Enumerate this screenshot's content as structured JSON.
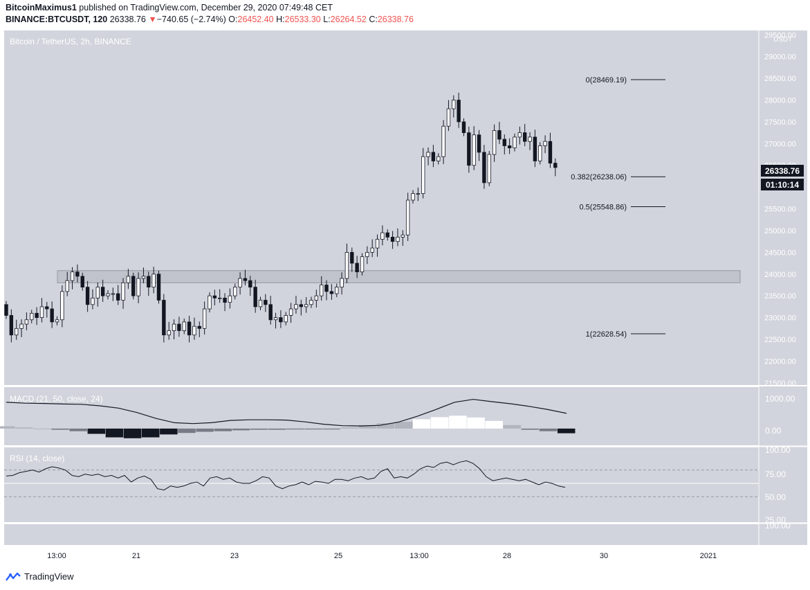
{
  "header": {
    "author": "BitcoinMaximus1",
    "published_text": "published on TradingView.com, December 29, 2020 07:49:48 CET",
    "symbol": "BINANCE:BTCUSDT, 120",
    "last": "26338.76",
    "change_arrow": "▼",
    "change": "−740.65 (−2.74%)",
    "o_label": "O:",
    "o": "26452.40",
    "h_label": "H:",
    "h": "26533.30",
    "l_label": "L:",
    "l": "26264.52",
    "c_label": "C:",
    "c": "26338.76"
  },
  "chart_data": [
    {
      "type": "candlestick",
      "title": "Bitcoin / TetherUS, 2h, BINANCE",
      "y_unit": "USDT",
      "ylim": [
        21500,
        29500
      ],
      "y_ticks": [
        21500,
        22000,
        22500,
        23000,
        23500,
        24000,
        24500,
        25000,
        25500,
        26000,
        26500,
        27000,
        27500,
        28000,
        28500,
        29000,
        29500
      ],
      "x_ticks": [
        "13:00",
        "21",
        "23",
        "25",
        "13:00",
        "28",
        "30",
        "2021"
      ],
      "last_price_label": "26338.76",
      "countdown_label": "01:10:14",
      "candles_close": [
        23050,
        22600,
        22750,
        22850,
        22950,
        23100,
        23000,
        23250,
        23200,
        22900,
        22950,
        23600,
        23850,
        24050,
        23950,
        23700,
        23300,
        23450,
        23700,
        23500,
        23550,
        23550,
        23400,
        23800,
        23950,
        23500,
        23900,
        23950,
        23700,
        24000,
        23400,
        22600,
        22700,
        22850,
        22700,
        22900,
        22600,
        22800,
        22750,
        23200,
        23500,
        23450,
        23450,
        23350,
        23500,
        23700,
        23900,
        23850,
        23700,
        23250,
        23400,
        23300,
        22950,
        23000,
        22900,
        23050,
        23200,
        23300,
        23250,
        23300,
        23400,
        23500,
        23750,
        23600,
        23550,
        23700,
        23900,
        24500,
        24250,
        24050,
        24400,
        24500,
        24600,
        24800,
        24950,
        24850,
        24750,
        24850,
        24900,
        25700,
        25850,
        25850,
        26700,
        26800,
        26600,
        26700,
        27400,
        27800,
        28000,
        27500,
        27250,
        26500,
        27200,
        26800,
        26100,
        26750,
        27300,
        27100,
        26950,
        26900,
        27150,
        27250,
        27050,
        27150,
        26600,
        26950,
        27050,
        26550,
        26450
      ],
      "fib_levels": [
        {
          "label": "0(28469.19)",
          "value": 28469.19
        },
        {
          "label": "0.382(26238.06)",
          "value": 26238.06
        },
        {
          "label": "0.5(25548.86)",
          "value": 25548.86
        },
        {
          "label": "1(22628.54)",
          "value": 22628.54
        }
      ],
      "support_zone": [
        23800,
        24080
      ]
    },
    {
      "type": "macd",
      "title": "MACD (21, 50, close, 24)",
      "y_ticks": [
        "1000.00",
        "0.00"
      ],
      "macd_line": [
        900,
        870,
        860,
        840,
        830,
        780,
        700,
        550,
        350,
        200,
        170,
        200,
        280,
        300,
        300,
        290,
        230,
        150,
        100,
        90,
        110,
        220,
        420,
        650,
        900,
        1000,
        920,
        850,
        760,
        650,
        520
      ],
      "histogram": [
        80,
        40,
        0,
        -40,
        -90,
        -180,
        -300,
        -330,
        -300,
        -200,
        -150,
        -110,
        -90,
        -60,
        -40,
        -40,
        -30,
        -30,
        -30,
        40,
        120,
        180,
        230,
        320,
        390,
        440,
        380,
        260,
        120,
        -40,
        -90,
        -160
      ]
    },
    {
      "type": "rsi",
      "title": "RSI (14, close)",
      "y_ticks": [
        "100.00",
        "75.00",
        "50.00",
        "25.00"
      ],
      "bottom_tick": "100.00",
      "upper_band": 70,
      "lower_band": 30,
      "values": [
        61,
        62,
        66,
        68,
        70,
        67,
        72,
        75,
        73,
        70,
        62,
        60,
        64,
        62,
        64,
        60,
        62,
        58,
        62,
        52,
        58,
        61,
        56,
        42,
        40,
        46,
        44,
        46,
        50,
        52,
        46,
        58,
        60,
        56,
        58,
        52,
        50,
        50,
        54,
        60,
        58,
        46,
        42,
        46,
        48,
        52,
        48,
        53,
        52,
        50,
        56,
        56,
        54,
        58,
        60,
        56,
        58,
        68,
        72,
        58,
        60,
        58,
        64,
        72,
        76,
        74,
        80,
        82,
        78,
        82,
        84,
        80,
        72,
        60,
        54,
        56,
        58,
        56,
        54,
        56,
        52,
        48,
        52,
        50,
        46,
        44
      ]
    },
    {
      "type": "time-axis",
      "labels": [
        "13:00",
        "21",
        "23",
        "25",
        "13:00",
        "28",
        "30",
        "2021"
      ]
    }
  ],
  "footer": {
    "brand": "TradingView"
  }
}
